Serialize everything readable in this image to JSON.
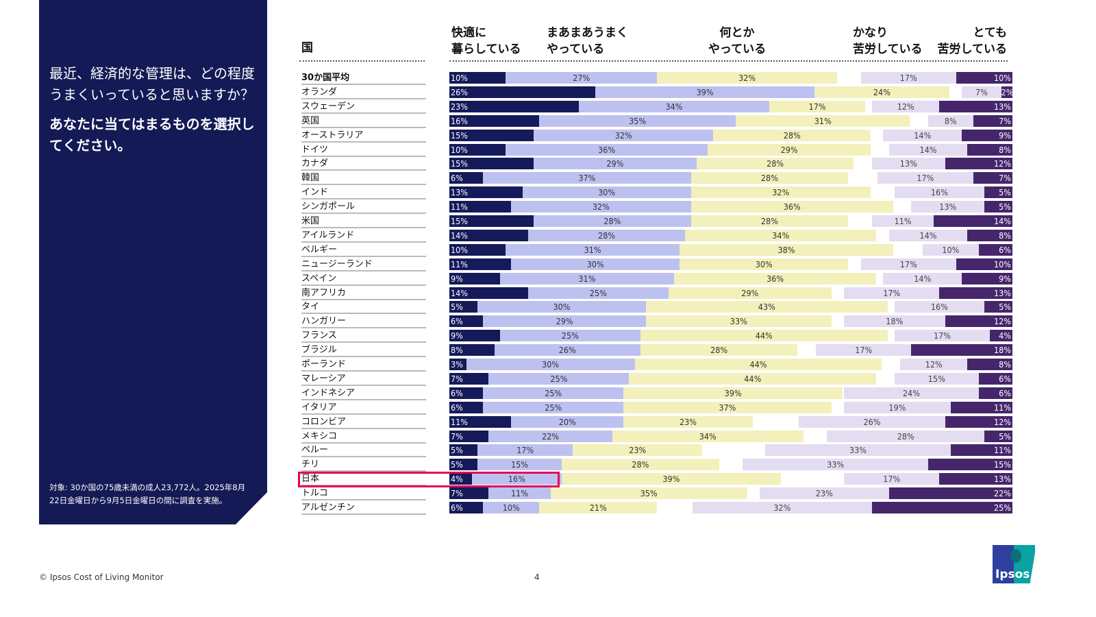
{
  "panel": {
    "question": "最近、経済的な管理は、どの程度うまくいっていると思いますか？",
    "instruction": "あなたに当てはまるものを選択してください。",
    "note": "対象: 30か国の75歳未満の成人23,772人。2025年8月22日金曜日から9月5日金曜日の間に調査を実施。"
  },
  "footer": {
    "copyright": "© Ipsos Cost of Living Monitor",
    "page": "4",
    "logo": "Ipsos"
  },
  "chart_data": {
    "type": "bar",
    "orientation": "horizontal-diverging-stacked",
    "country_header": "国",
    "series": [
      {
        "name": "快適に暮らしている",
        "color": "#141a5a",
        "side": "left"
      },
      {
        "name": "まあまあうまくやっている",
        "color": "#bcc1f0",
        "side": "left"
      },
      {
        "name": "何とかやっている",
        "color": "#f3f0bb",
        "side": "left"
      },
      {
        "name": "かなり苦労している",
        "color": "#e4dcf1",
        "side": "right"
      },
      {
        "name": "とても苦労している",
        "color": "#45266b",
        "side": "right"
      }
    ],
    "header_labels": [
      "快適に\n暮らしている",
      "まあまあうまく\nやっている",
      "何とか\nやっている",
      "かなり\n苦労している",
      "とても\n苦労している"
    ],
    "highlight": "日本",
    "highlight_color": "#e5005a",
    "categories": [
      "30か国平均",
      "オランダ",
      "スウェーデン",
      "英国",
      "オーストラリア",
      "ドイツ",
      "カナダ",
      "韓国",
      "インド",
      "シンガポール",
      "米国",
      "アイルランド",
      "ベルギー",
      "ニュージーランド",
      "スペイン",
      "南アフリカ",
      "タイ",
      "ハンガリー",
      "フランス",
      "ブラジル",
      "ポーランド",
      "マレーシア",
      "インドネシア",
      "イタリア",
      "コロンビア",
      "メキシコ",
      "ペルー",
      "チリ",
      "日本",
      "トルコ",
      "アルゼンチン"
    ],
    "values": [
      [
        10,
        27,
        32,
        17,
        10
      ],
      [
        26,
        39,
        24,
        7,
        2
      ],
      [
        23,
        34,
        17,
        12,
        13
      ],
      [
        16,
        35,
        31,
        8,
        7
      ],
      [
        15,
        32,
        28,
        14,
        9
      ],
      [
        10,
        36,
        29,
        14,
        8
      ],
      [
        15,
        29,
        28,
        13,
        12
      ],
      [
        6,
        37,
        28,
        17,
        7
      ],
      [
        13,
        30,
        32,
        16,
        5
      ],
      [
        11,
        32,
        36,
        13,
        5
      ],
      [
        15,
        28,
        28,
        11,
        14
      ],
      [
        14,
        28,
        34,
        14,
        8
      ],
      [
        10,
        31,
        38,
        10,
        6
      ],
      [
        11,
        30,
        30,
        17,
        10
      ],
      [
        9,
        31,
        36,
        14,
        9
      ],
      [
        14,
        25,
        29,
        17,
        13
      ],
      [
        5,
        30,
        43,
        16,
        5
      ],
      [
        6,
        29,
        33,
        18,
        12
      ],
      [
        9,
        25,
        44,
        17,
        4
      ],
      [
        8,
        26,
        28,
        17,
        18
      ],
      [
        3,
        30,
        44,
        12,
        8
      ],
      [
        7,
        25,
        44,
        15,
        6
      ],
      [
        6,
        25,
        39,
        24,
        6
      ],
      [
        6,
        25,
        37,
        19,
        11
      ],
      [
        11,
        20,
        23,
        26,
        12
      ],
      [
        7,
        22,
        34,
        28,
        5
      ],
      [
        5,
        17,
        23,
        33,
        11
      ],
      [
        5,
        15,
        28,
        33,
        15
      ],
      [
        4,
        16,
        39,
        17,
        13
      ],
      [
        7,
        11,
        35,
        23,
        22
      ],
      [
        6,
        10,
        21,
        32,
        25
      ]
    ],
    "unit": "%"
  }
}
